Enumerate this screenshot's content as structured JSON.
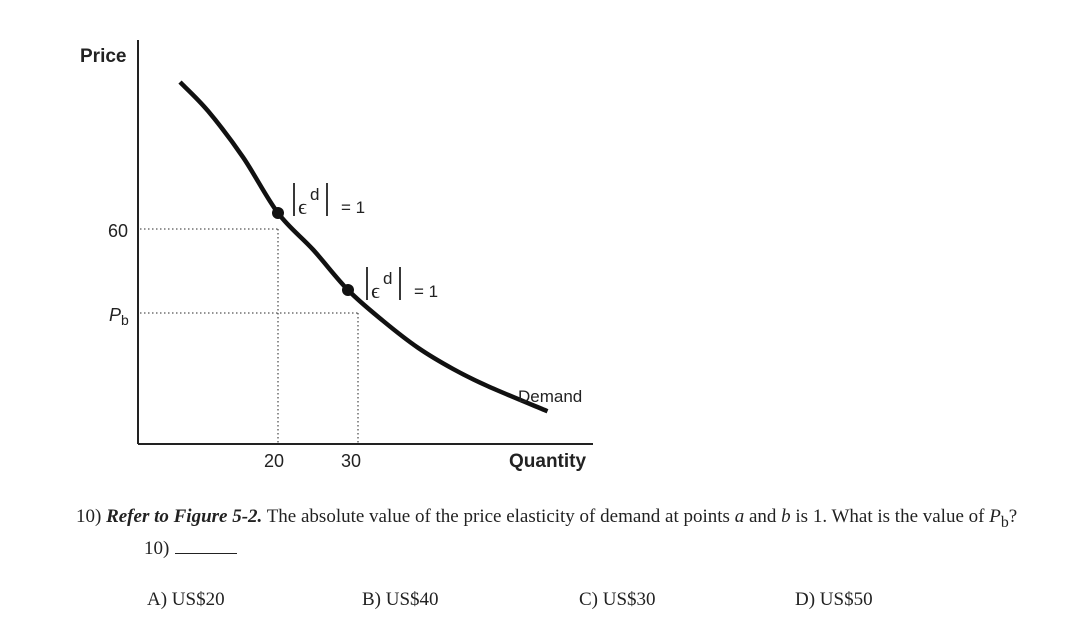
{
  "chart_data": {
    "type": "line",
    "xlabel": "Quantity",
    "ylabel": "Price",
    "x_ticks": [
      "20",
      "30"
    ],
    "y_ticks": [
      "60",
      "Pb"
    ],
    "series": [
      {
        "name": "Demand",
        "x": [
          6,
          10,
          15,
          20,
          25,
          30,
          35,
          40,
          45,
          50,
          58.5
        ],
        "y": [
          94,
          86.5,
          74.5,
          60,
          50.5,
          40,
          32,
          25,
          19.5,
          15,
          8.5
        ]
      }
    ],
    "points": [
      {
        "x": 20,
        "y": 60,
        "annotation": "|εd| = 1"
      },
      {
        "x": 30,
        "y": 40,
        "annotation": "|εd| = 1"
      }
    ],
    "legend_label": "Demand",
    "xlim": [
      0,
      60
    ],
    "ylim": [
      0,
      100
    ],
    "grid": false
  },
  "question": {
    "number": "10)",
    "ref": "Refer to Figure 5-2.",
    "text_1": " The absolute value of the price elasticity of demand at points ",
    "point_a": "a",
    "text_2": " and ",
    "point_b": "b",
    "text_3": " is 1. What is the value of ",
    "pb_p": "P",
    "pb_sub": "b",
    "text_4": "?",
    "answer_number": "10)"
  },
  "options": [
    {
      "label": "A) US$20"
    },
    {
      "label": "B) US$40"
    },
    {
      "label": "C) US$30"
    },
    {
      "label": "D) US$50"
    }
  ]
}
